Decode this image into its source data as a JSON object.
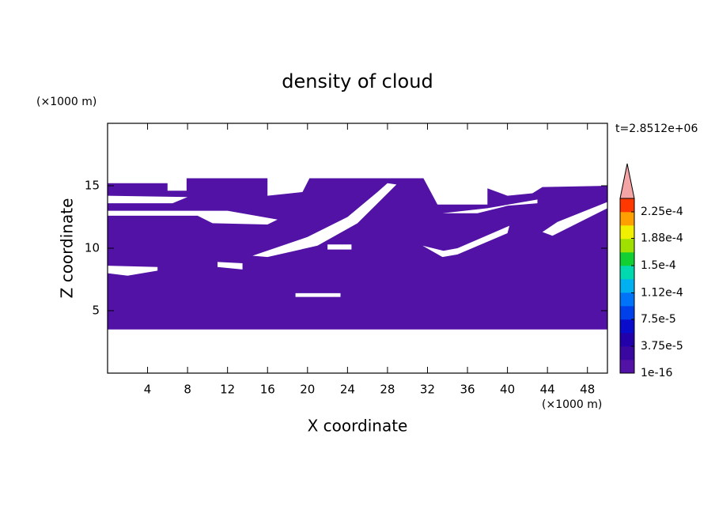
{
  "chart_data": {
    "type": "contour",
    "title": "density of cloud",
    "x_label": "X coordinate",
    "y_label": "Z coordinate",
    "x_unit": "(×1000 m)",
    "y_unit": "(×1000 m)",
    "annotation": "t=2.8512e+06",
    "xlim": [
      0,
      50
    ],
    "ylim": [
      0,
      20
    ],
    "xticks": [
      4,
      8,
      12,
      16,
      20,
      24,
      28,
      32,
      36,
      40,
      44,
      48
    ],
    "yticks": [
      5,
      10,
      15
    ],
    "regions": [
      {
        "color": "#5212a6",
        "x": [
          0,
          50,
          50,
          43.5,
          42.5,
          40,
          38,
          38,
          33,
          31.6,
          20.2,
          19.5,
          16,
          16,
          7.9,
          7.9,
          6,
          6,
          0,
          null,
          0,
          6.5,
          8,
          0,
          null,
          0,
          9,
          10.5,
          16,
          17,
          12,
          0,
          null,
          14.5,
          20,
          24,
          27,
          28,
          28.9,
          25,
          21,
          16,
          null,
          31.5,
          33.5,
          35,
          40,
          40.2,
          35,
          33.6,
          null,
          43.5,
          44.5,
          50,
          50,
          45,
          null,
          33.5,
          37,
          40,
          43,
          43,
          38,
          null,
          22,
          24.4,
          24.4,
          22,
          null,
          11,
          13.5,
          13.5,
          11,
          null,
          0,
          2,
          5,
          5,
          0,
          null,
          18.8,
          23.3,
          23.3,
          18.8
        ],
        "y": [
          3.5,
          3.5,
          15.0,
          14.9,
          14.4,
          14.2,
          14.8,
          13.5,
          13.5,
          15.6,
          15.6,
          14.5,
          14.2,
          15.6,
          15.6,
          14.6,
          14.6,
          15.2,
          15.2,
          null,
          13.6,
          13.6,
          14.1,
          14.2,
          null,
          12.6,
          12.6,
          12.0,
          11.9,
          12.3,
          13.0,
          13.0,
          null,
          9.4,
          10.9,
          12.5,
          14.5,
          15.2,
          15.1,
          12.0,
          10.2,
          9.3,
          null,
          10.2,
          9.3,
          9.5,
          11.2,
          11.8,
          10.0,
          9.8,
          null,
          11.3,
          11.0,
          13.2,
          13.7,
          12.1,
          null,
          12.8,
          12.8,
          13.4,
          13.6,
          13.9,
          13.2,
          null,
          9.9,
          9.9,
          10.3,
          10.3,
          null,
          8.5,
          8.3,
          8.8,
          8.9,
          null,
          8.0,
          7.8,
          8.2,
          8.5,
          8.6,
          null,
          6.1,
          6.1,
          6.4,
          6.4
        ]
      }
    ],
    "colorbar": {
      "lim": [
        1e-16,
        0.00024375
      ],
      "colors": [
        "#5212a6",
        "#3a08a0",
        "#2200aa",
        "#0a0ccc",
        "#0040ea",
        "#0074f8",
        "#00b0f0",
        "#00d8b0",
        "#12d034",
        "#a0e000",
        "#f0f000",
        "#ffa000",
        "#ff3800"
      ],
      "extend_color": "#f4a4a4",
      "ticks": [
        1e-16,
        {
          "value": 3.75e-05,
          "label": "3.75e-5"
        },
        {
          "value": 7.5e-05,
          "label": "7.5e-5"
        },
        {
          "value": 0.000112,
          "label": "1.12e-4"
        },
        {
          "value": 0.00015,
          "label": "1.5e-4"
        },
        {
          "value": 0.000188,
          "label": "1.88e-4"
        },
        {
          "value": 0.000225,
          "label": "2.25e-4"
        }
      ]
    }
  }
}
